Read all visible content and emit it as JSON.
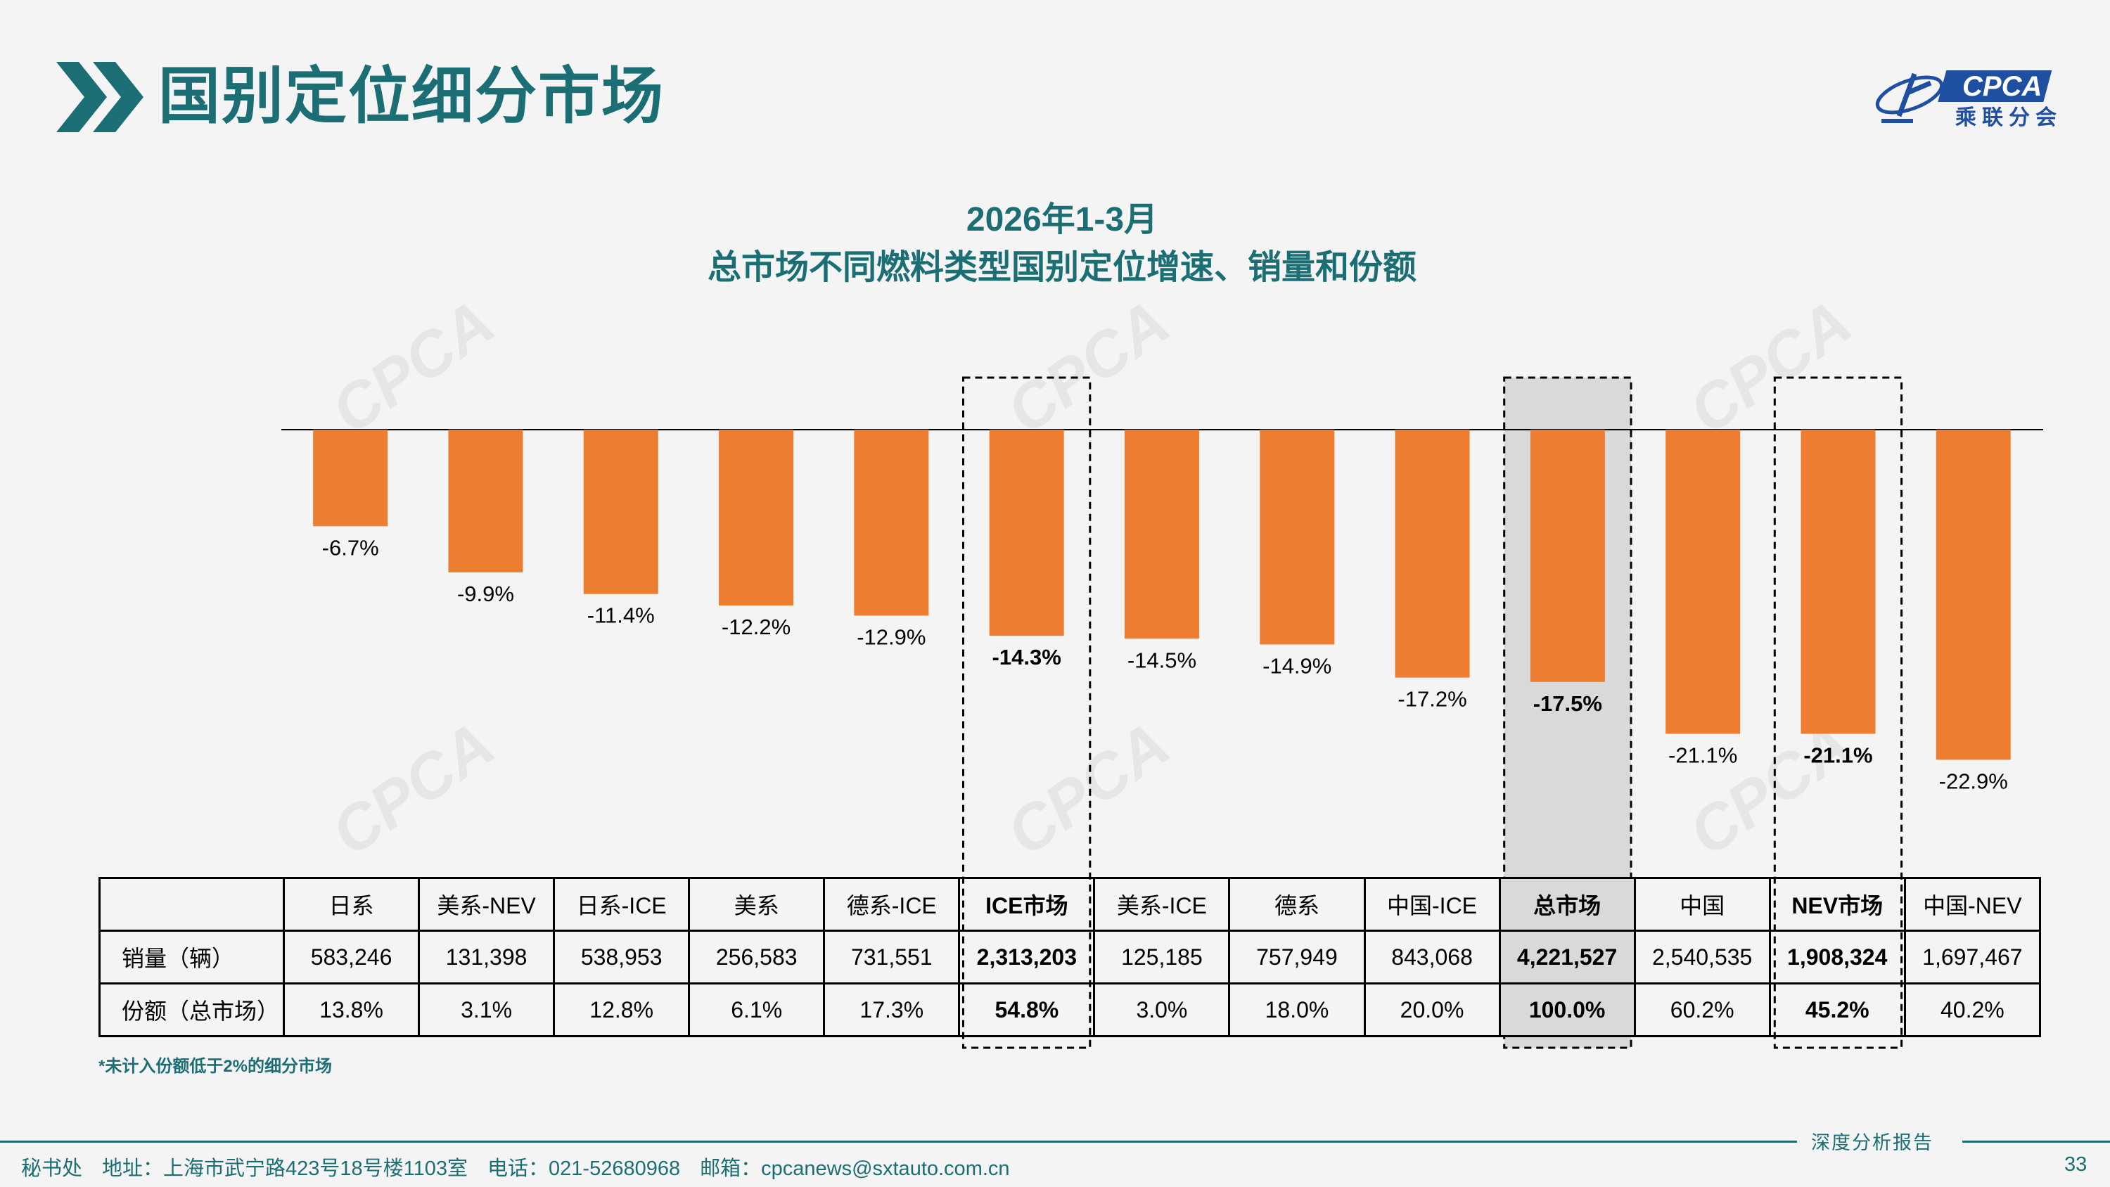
{
  "header": {
    "title": "国别定位细分市场",
    "logo_text": "CPCA",
    "logo_subtext": "乘联分会"
  },
  "chart_data": {
    "type": "bar",
    "title": "2026年1-3月",
    "subtitle": "总市场不同燃料类型国别定位增速、销量和份额",
    "watermark": "CPCA",
    "categories": [
      "日系",
      "美系-NEV",
      "日系-ICE",
      "美系",
      "德系-ICE",
      "ICE市场",
      "美系-ICE",
      "德系",
      "中国-ICE",
      "总市场",
      "中国",
      "NEV市场",
      "中国-NEV"
    ],
    "series": [
      {
        "name": "增速",
        "values": [
          -6.7,
          -9.9,
          -11.4,
          -12.2,
          -12.9,
          -14.3,
          -14.5,
          -14.9,
          -17.2,
          -17.5,
          -21.1,
          -21.1,
          -22.9
        ]
      }
    ],
    "value_labels": [
      "-6.7%",
      "-9.9%",
      "-11.4%",
      "-12.2%",
      "-12.9%",
      "-14.3%",
      "-14.5%",
      "-14.9%",
      "-17.2%",
      "-17.5%",
      "-21.1%",
      "-21.1%",
      "-22.9%"
    ],
    "highlighted": [
      "ICE市场",
      "总市场",
      "NEV市场"
    ],
    "shaded": [
      "总市场"
    ],
    "ylim": [
      -25,
      0
    ],
    "bar_color": "#ed7d31",
    "xlabel": "",
    "ylabel": ""
  },
  "table": {
    "rows": [
      {
        "label": "销量（辆）",
        "cells": [
          "583,246",
          "131,398",
          "538,953",
          "256,583",
          "731,551",
          "2,313,203",
          "125,185",
          "757,949",
          "843,068",
          "4,221,527",
          "2,540,535",
          "1,908,324",
          "1,697,467"
        ]
      },
      {
        "label": "份额（总市场）",
        "cells": [
          "13.8%",
          "3.1%",
          "12.8%",
          "6.1%",
          "17.3%",
          "54.8%",
          "3.0%",
          "18.0%",
          "20.0%",
          "100.0%",
          "60.2%",
          "45.2%",
          "40.2%"
        ]
      }
    ]
  },
  "footnote": "*未计入份额低于2%的细分市场",
  "footer": {
    "org": "秘书处",
    "address": "地址：上海市武宁路423号18号楼1103室",
    "phone": "电话：021-52680968",
    "email": "邮箱：cpcanews@sxtauto.com.cn",
    "report_label": "深度分析报告",
    "page_number": "33"
  },
  "colors": {
    "accent": "#1b6f74",
    "bar": "#ed7d31",
    "shade": "#d9d9d9",
    "brand_blue": "#1f4fa0"
  }
}
